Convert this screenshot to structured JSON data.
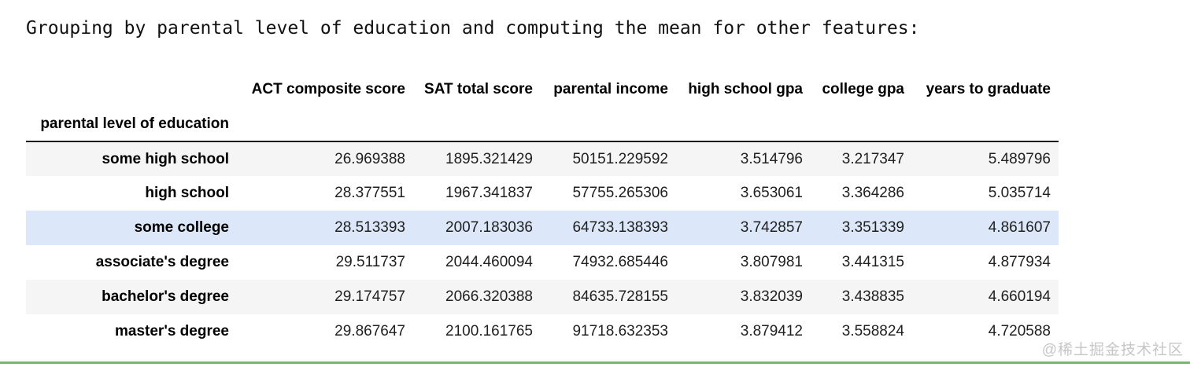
{
  "title": "Grouping by parental level of education and computing the mean for other features:",
  "table": {
    "index_name": "parental level of education",
    "columns": [
      "ACT composite score",
      "SAT total score",
      "parental income",
      "high school gpa",
      "college gpa",
      "years to graduate"
    ],
    "rows": [
      {
        "label": "some high school",
        "values": [
          "26.969388",
          "1895.321429",
          "50151.229592",
          "3.514796",
          "3.217347",
          "5.489796"
        ],
        "striped": true,
        "highlighted": false
      },
      {
        "label": "high school",
        "values": [
          "28.377551",
          "1967.341837",
          "57755.265306",
          "3.653061",
          "3.364286",
          "5.035714"
        ],
        "striped": false,
        "highlighted": false
      },
      {
        "label": "some college",
        "values": [
          "28.513393",
          "2007.183036",
          "64733.138393",
          "3.742857",
          "3.351339",
          "4.861607"
        ],
        "striped": false,
        "highlighted": true
      },
      {
        "label": "associate's degree",
        "values": [
          "29.511737",
          "2044.460094",
          "74932.685446",
          "3.807981",
          "3.441315",
          "4.877934"
        ],
        "striped": false,
        "highlighted": false
      },
      {
        "label": "bachelor's degree",
        "values": [
          "29.174757",
          "2066.320388",
          "84635.728155",
          "3.832039",
          "3.438835",
          "4.660194"
        ],
        "striped": true,
        "highlighted": false
      },
      {
        "label": "master's degree",
        "values": [
          "29.867647",
          "2100.161765",
          "91718.632353",
          "3.879412",
          "3.558824",
          "4.720588"
        ],
        "striped": false,
        "highlighted": false
      }
    ]
  },
  "watermark": "@稀土掘金技术社区",
  "colors": {
    "stripe_bg": "#f5f5f5",
    "highlight_bg": "#dce8f9",
    "header_border": "#1a1a1a",
    "bottom_line": "#7db478",
    "watermark_text": "#c6c6c6"
  }
}
